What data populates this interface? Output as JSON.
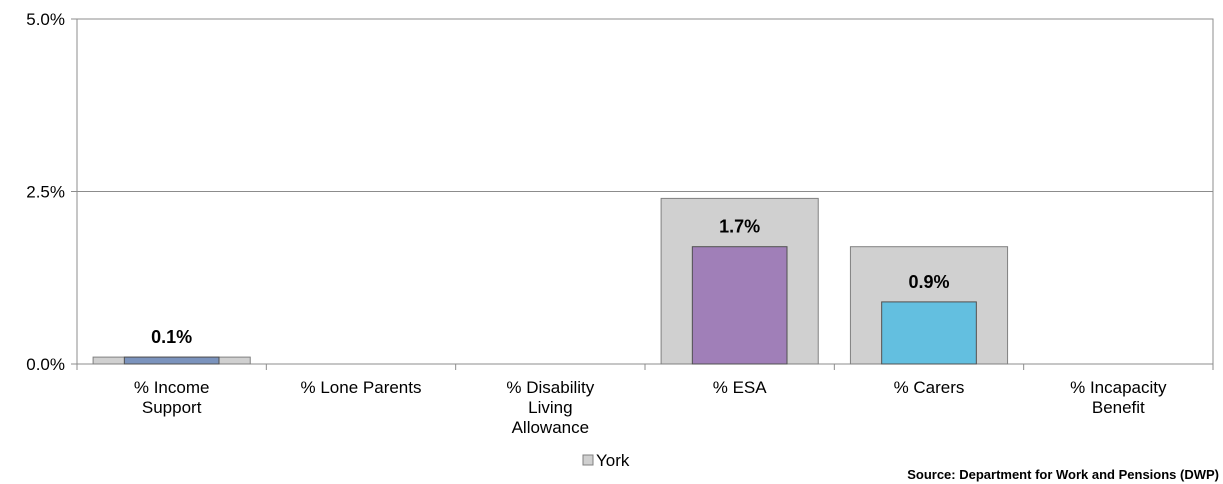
{
  "chart_data": {
    "type": "bar",
    "categories": [
      [
        "% Income",
        "Support"
      ],
      [
        "% Lone Parents"
      ],
      [
        "% Disability",
        "Living",
        "Allowance"
      ],
      [
        "% ESA"
      ],
      [
        "% Carers"
      ],
      [
        "% Incapacity",
        "Benefit"
      ]
    ],
    "series": [
      {
        "name": "York",
        "values": [
          0.1,
          0,
          0,
          2.4,
          1.7,
          0
        ],
        "color": "#d0d0d0"
      },
      {
        "values": [
          0.1,
          0,
          0,
          1.7,
          0.9,
          0
        ],
        "colors": [
          "#7b93bd",
          "#7b93bd",
          "#7b93bd",
          "#a07fb8",
          "#63bfe0",
          "#7b93bd"
        ]
      }
    ],
    "data_labels": [
      "0.1%",
      "",
      "",
      "1.7%",
      "0.9%",
      ""
    ],
    "yticks": [
      "0.0%",
      "2.5%",
      "5.0%"
    ],
    "ylim": [
      0,
      5
    ],
    "grid": true,
    "legend": {
      "position": "bottom",
      "entries": [
        "York"
      ]
    }
  },
  "source_text": "Source: Department for Work and Pensions (DWP)"
}
